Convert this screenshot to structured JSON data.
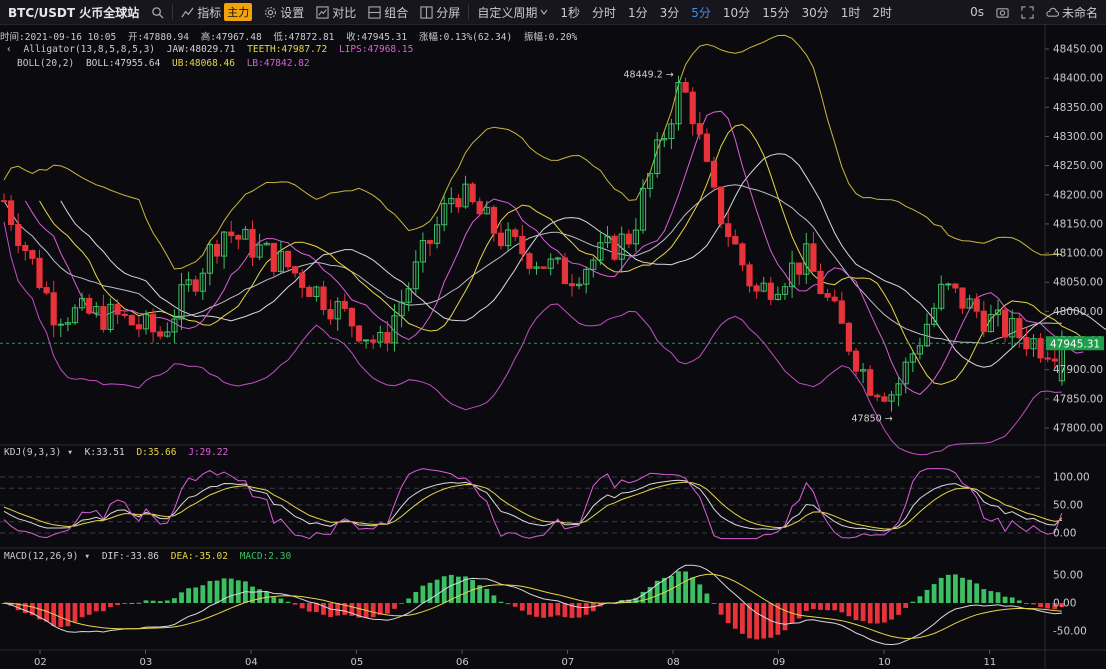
{
  "toolbar": {
    "symbol": "BTC/USDT 火币全球站",
    "indicators_label": "指标",
    "main_badge": "主力",
    "settings_label": "设置",
    "compare_label": "对比",
    "combo_label": "组合",
    "split_label": "分屏",
    "custom_period_label": "自定义周期",
    "periods": [
      "1秒",
      "分时",
      "1分",
      "3分",
      "5分",
      "10分",
      "15分",
      "30分",
      "1时",
      "2时"
    ],
    "active_period": "5分",
    "countdown": "0s",
    "layout_name": "未命名",
    "colors": {
      "active": "#3d8df0",
      "badge": "#f0a30a"
    }
  },
  "ohlc_bar": {
    "time_label": "时间:2021-09-16 10:05",
    "open": "开:47880.94",
    "high": "高:47967.48",
    "low": "低:47872.81",
    "close": "收:47945.31",
    "change": "涨幅:0.13%(62.34)",
    "amplitude": "振幅:0.20%"
  },
  "alligator_legend": {
    "name": "Alligator(13,8,5,8,5,3)",
    "jaw": "JAW:48029.71",
    "teeth": "TEETH:47987.72",
    "lips": "LIPS:47968.15"
  },
  "boll_legend": {
    "name": "BOLL(20,2)",
    "boll": "BOLL:47955.64",
    "ub": "UB:48068.46",
    "lb": "LB:47842.82"
  },
  "kdj_legend": {
    "name": "KDJ(9,3,3)",
    "k": "K:33.51",
    "d": "D:35.66",
    "j": "J:29.22"
  },
  "macd_legend": {
    "name": "MACD(12,26,9)",
    "dif": "DIF:-33.86",
    "dea": "DEA:-35.02",
    "macd": "MACD:2.30"
  },
  "annotations": {
    "max_label": "48449.2 →",
    "min_label": "47850 →"
  },
  "chart_data": {
    "type": "candlestick",
    "price_axis_ticks": [
      "48450.00",
      "48400.00",
      "48350.00",
      "48300.00",
      "48250.00",
      "48200.00",
      "48150.00",
      "48100.00",
      "48050.00",
      "48000.00",
      "47950.00",
      "47900.00",
      "47850.00",
      "47800.00"
    ],
    "current_price": "47945.31",
    "kdj_axis_ticks": [
      "100.00",
      "50.00",
      "0.00"
    ],
    "macd_axis_ticks": [
      "50.00",
      "0.00",
      "-50.00"
    ],
    "time_axis_labels": [
      "02",
      "03",
      "04",
      "05",
      "06",
      "07",
      "08",
      "09",
      "10",
      "11"
    ],
    "colors": {
      "up": "#3cbf62",
      "down": "#e8333a",
      "price_tag": "#1e9e4a",
      "jaw": "#e6e6ee",
      "teeth": "#e6d548",
      "lips": "#d85fd8"
    }
  }
}
